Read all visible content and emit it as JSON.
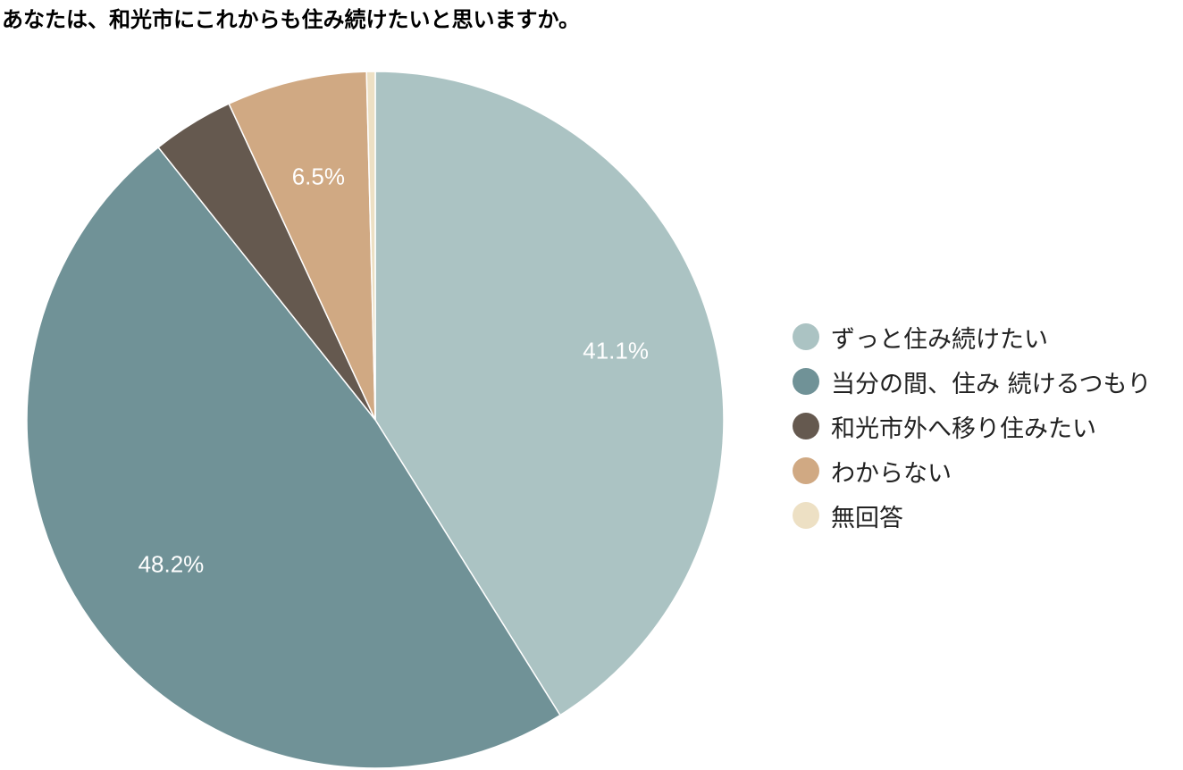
{
  "chart_data": {
    "type": "pie",
    "title": "あなたは、和光市にこれからも住み続けたいと思いますか。",
    "slices": [
      {
        "label": "ずっと住み続けたい",
        "value": 41.1,
        "display": "41.1%",
        "color": "#abc3c3"
      },
      {
        "label": "当分の間、住み 続けるつもり",
        "value": 48.2,
        "display": "48.2%",
        "color": "#709297"
      },
      {
        "label": "和光市外へ移り住みたい",
        "value": 3.8,
        "display": "",
        "color": "#65594f"
      },
      {
        "label": "わからない",
        "value": 6.5,
        "display": "6.5%",
        "color": "#d0a983"
      },
      {
        "label": "無回答",
        "value": 0.4,
        "display": "",
        "color": "#ede0c4"
      }
    ],
    "start_angle": "12 o'clock",
    "direction": "clockwise",
    "legend_position": "right"
  }
}
